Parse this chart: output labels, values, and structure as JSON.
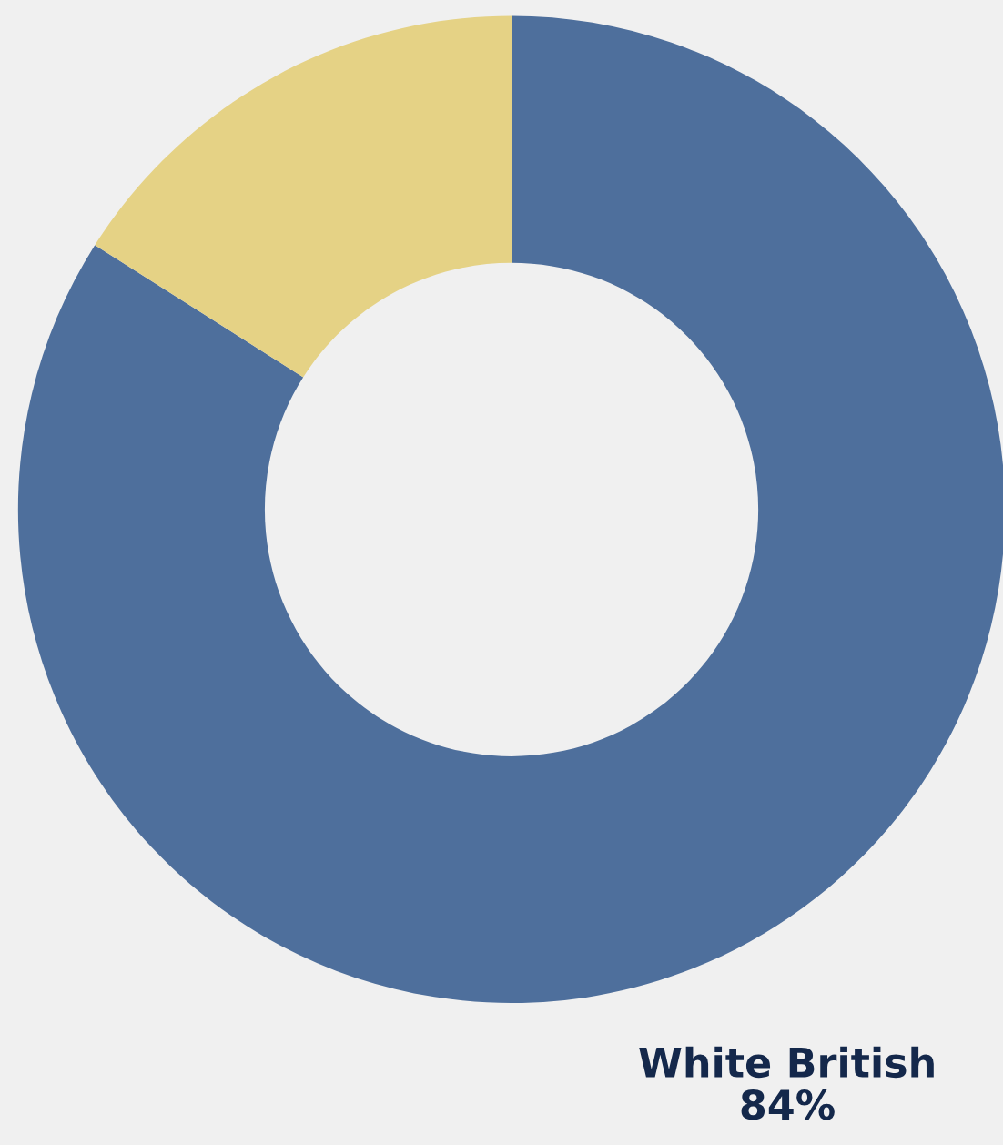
{
  "chart_data": {
    "type": "donut",
    "categories": [
      "White British",
      null
    ],
    "values": [
      84,
      16
    ],
    "colors": [
      "#4e6f9c",
      "#e5d285"
    ],
    "value_labels": [
      "84%",
      null
    ]
  }
}
